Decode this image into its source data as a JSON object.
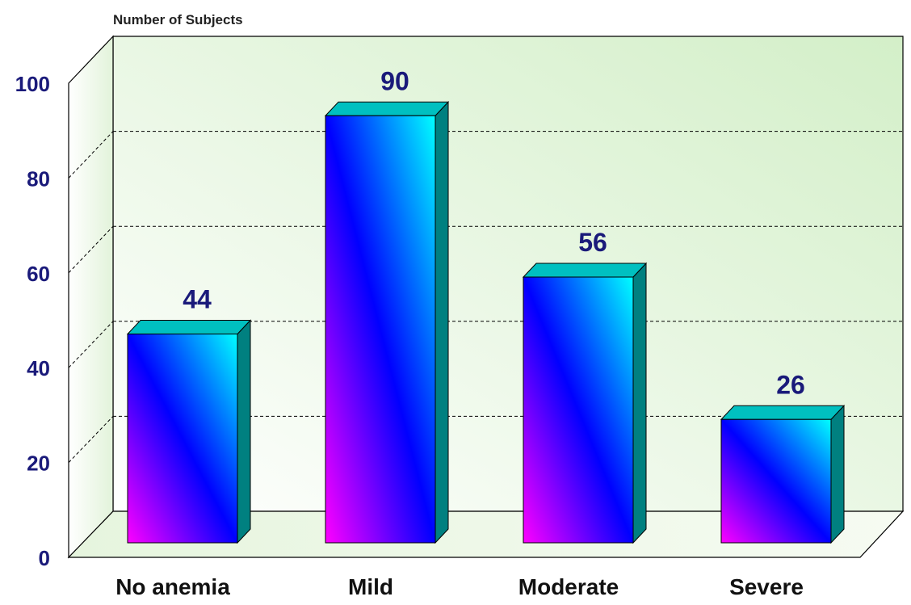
{
  "chart_data": {
    "type": "bar",
    "title": "",
    "ylabel": "Number of Subjects",
    "xlabel": "",
    "categories": [
      "No anemia",
      "Mild",
      "Moderate",
      "Severe"
    ],
    "values": [
      44,
      90,
      56,
      26
    ],
    "ylim": [
      0,
      100
    ],
    "yticks": [
      0,
      20,
      40,
      60,
      80,
      100
    ],
    "grid": true,
    "style": "3d",
    "colors": {
      "bar_top": "#00ffff",
      "bar_mid": "#0000ff",
      "bar_bottom": "#ff00ff",
      "bar_side": "#008080",
      "bar_cap": "#00c0c0",
      "wall": "#d8f0d0",
      "text": "#1a1a7a"
    }
  }
}
